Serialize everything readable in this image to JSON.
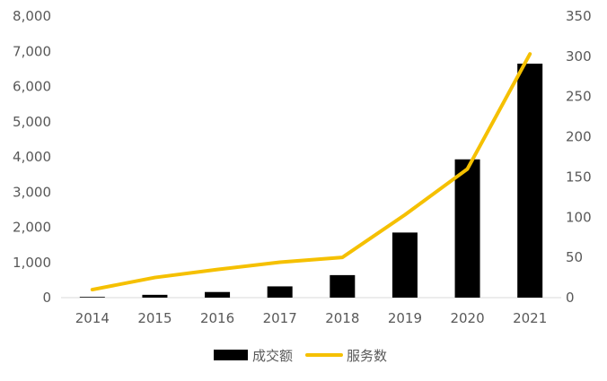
{
  "chart_data": {
    "type": "bar+line",
    "categories": [
      "2014",
      "2015",
      "2016",
      "2017",
      "2018",
      "2019",
      "2020",
      "2021"
    ],
    "series": [
      {
        "name": "成交额",
        "type": "bar",
        "axis": "left",
        "color": "#000000",
        "values": [
          20,
          80,
          160,
          320,
          640,
          1850,
          3930,
          6650
        ]
      },
      {
        "name": "服务数",
        "type": "line",
        "axis": "right",
        "color": "#F5C000",
        "values": [
          10,
          25,
          35,
          44,
          50,
          103,
          160,
          303
        ]
      }
    ],
    "y_left": {
      "min": 0,
      "max": 8000,
      "step": 1000,
      "ticks": [
        "0",
        "1,000",
        "2,000",
        "3,000",
        "4,000",
        "5,000",
        "6,000",
        "7,000",
        "8,000"
      ]
    },
    "y_right": {
      "min": 0,
      "max": 350,
      "step": 50,
      "ticks": [
        "0",
        "50",
        "100",
        "150",
        "200",
        "250",
        "300",
        "350"
      ]
    },
    "grid": false,
    "legend_position": "bottom"
  }
}
